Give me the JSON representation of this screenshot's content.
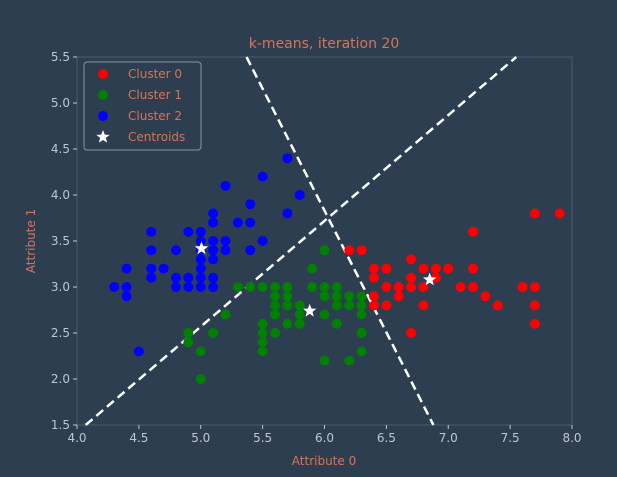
{
  "colors": {
    "background": "#2c3e50",
    "axes_frame": "#4a5d70",
    "tick_text": "#c0c6cc",
    "title_text": "#d8735a",
    "label_text": "#d8735a",
    "legend_text": "#d8735a",
    "cluster0": "#ff0000",
    "cluster1": "#008000",
    "cluster2": "#0000ff",
    "centroid": "#ffffff",
    "boundary": "#ffffff"
  },
  "chart_data": {
    "type": "scatter",
    "title": "k-means, iteration 20",
    "xlabel": "Attribute 0",
    "ylabel": "Attribute 1",
    "xlim": [
      4.0,
      8.0
    ],
    "ylim": [
      1.5,
      5.5
    ],
    "xticks": [
      "4.0",
      "4.5",
      "5.0",
      "5.5",
      "6.0",
      "6.5",
      "7.0",
      "7.5",
      "8.0"
    ],
    "yticks": [
      "1.5",
      "2.0",
      "2.5",
      "3.0",
      "3.5",
      "4.0",
      "4.5",
      "5.0",
      "5.5"
    ],
    "grid": false,
    "legend_position": "top-left",
    "series": [
      {
        "name": "Cluster 0",
        "color": "#ff0000",
        "marker": "circle",
        "points": [
          [
            6.2,
            3.4
          ],
          [
            6.3,
            3.4
          ],
          [
            6.4,
            3.2
          ],
          [
            6.4,
            3.1
          ],
          [
            6.5,
            3.2
          ],
          [
            6.5,
            3.0
          ],
          [
            6.4,
            2.9
          ],
          [
            6.4,
            2.8
          ],
          [
            6.5,
            2.8
          ],
          [
            6.6,
            3.0
          ],
          [
            6.6,
            2.9
          ],
          [
            6.7,
            3.3
          ],
          [
            6.7,
            3.1
          ],
          [
            6.7,
            3.0
          ],
          [
            6.7,
            2.5
          ],
          [
            6.8,
            3.2
          ],
          [
            6.8,
            3.0
          ],
          [
            6.8,
            2.8
          ],
          [
            6.9,
            3.2
          ],
          [
            6.9,
            3.1
          ],
          [
            7.0,
            3.2
          ],
          [
            7.1,
            3.0
          ],
          [
            7.2,
            3.6
          ],
          [
            7.2,
            3.2
          ],
          [
            7.2,
            3.0
          ],
          [
            7.3,
            2.9
          ],
          [
            7.4,
            2.8
          ],
          [
            7.6,
            3.0
          ],
          [
            7.7,
            3.8
          ],
          [
            7.7,
            3.0
          ],
          [
            7.7,
            2.8
          ],
          [
            7.7,
            2.6
          ],
          [
            7.9,
            3.8
          ]
        ]
      },
      {
        "name": "Cluster 1",
        "color": "#008000",
        "marker": "circle",
        "points": [
          [
            4.9,
            2.4
          ],
          [
            4.9,
            2.5
          ],
          [
            5.0,
            2.0
          ],
          [
            5.0,
            2.3
          ],
          [
            5.1,
            2.5
          ],
          [
            5.2,
            2.7
          ],
          [
            5.5,
            2.3
          ],
          [
            5.5,
            2.4
          ],
          [
            5.5,
            2.5
          ],
          [
            5.5,
            2.6
          ],
          [
            5.6,
            2.5
          ],
          [
            5.6,
            2.7
          ],
          [
            5.6,
            2.8
          ],
          [
            5.6,
            2.9
          ],
          [
            5.6,
            3.0
          ],
          [
            5.7,
            2.6
          ],
          [
            5.7,
            2.8
          ],
          [
            5.7,
            2.9
          ],
          [
            5.7,
            3.0
          ],
          [
            5.8,
            2.6
          ],
          [
            5.8,
            2.7
          ],
          [
            5.8,
            2.8
          ],
          [
            5.9,
            3.0
          ],
          [
            5.9,
            3.2
          ],
          [
            6.0,
            2.2
          ],
          [
            6.0,
            2.7
          ],
          [
            6.0,
            2.9
          ],
          [
            6.0,
            3.0
          ],
          [
            6.0,
            3.4
          ],
          [
            6.1,
            2.6
          ],
          [
            6.1,
            2.8
          ],
          [
            6.1,
            2.9
          ],
          [
            6.1,
            3.0
          ],
          [
            6.2,
            2.2
          ],
          [
            6.2,
            2.8
          ],
          [
            6.2,
            2.9
          ],
          [
            6.3,
            2.3
          ],
          [
            6.3,
            2.5
          ],
          [
            6.3,
            2.7
          ],
          [
            6.3,
            2.8
          ],
          [
            6.3,
            2.9
          ],
          [
            5.5,
            3.0
          ],
          [
            5.4,
            3.0
          ],
          [
            5.3,
            3.0
          ]
        ]
      },
      {
        "name": "Cluster 2",
        "color": "#0000ff",
        "marker": "circle",
        "points": [
          [
            4.3,
            3.0
          ],
          [
            4.4,
            2.9
          ],
          [
            4.4,
            3.0
          ],
          [
            4.4,
            3.2
          ],
          [
            4.5,
            2.3
          ],
          [
            4.6,
            3.1
          ],
          [
            4.6,
            3.2
          ],
          [
            4.6,
            3.4
          ],
          [
            4.6,
            3.6
          ],
          [
            4.7,
            3.2
          ],
          [
            4.8,
            3.0
          ],
          [
            4.8,
            3.1
          ],
          [
            4.8,
            3.4
          ],
          [
            4.9,
            3.0
          ],
          [
            4.9,
            3.1
          ],
          [
            4.9,
            3.6
          ],
          [
            5.0,
            3.0
          ],
          [
            5.0,
            3.2
          ],
          [
            5.0,
            3.3
          ],
          [
            5.0,
            3.4
          ],
          [
            5.0,
            3.5
          ],
          [
            5.0,
            3.6
          ],
          [
            5.1,
            3.3
          ],
          [
            5.1,
            3.4
          ],
          [
            5.1,
            3.5
          ],
          [
            5.1,
            3.7
          ],
          [
            5.1,
            3.8
          ],
          [
            5.2,
            3.4
          ],
          [
            5.2,
            3.5
          ],
          [
            5.2,
            4.1
          ],
          [
            5.3,
            3.7
          ],
          [
            5.4,
            3.4
          ],
          [
            5.4,
            3.7
          ],
          [
            5.4,
            3.9
          ],
          [
            5.5,
            3.5
          ],
          [
            5.5,
            4.2
          ],
          [
            5.7,
            3.8
          ],
          [
            5.7,
            4.4
          ],
          [
            5.8,
            4.0
          ],
          [
            5.1,
            3.0
          ],
          [
            5.0,
            3.1
          ],
          [
            4.9,
            3.1
          ],
          [
            5.1,
            3.1
          ]
        ]
      },
      {
        "name": "Centroids",
        "color": "#ffffff",
        "marker": "star",
        "points": [
          [
            6.85,
            3.08
          ],
          [
            5.88,
            2.74
          ],
          [
            5.006,
            3.418
          ]
        ]
      }
    ],
    "boundaries": [
      [
        [
          4.07,
          1.5
        ],
        [
          7.55,
          5.5
        ]
      ],
      [
        [
          5.37,
          5.5
        ],
        [
          6.88,
          1.5
        ]
      ]
    ]
  }
}
